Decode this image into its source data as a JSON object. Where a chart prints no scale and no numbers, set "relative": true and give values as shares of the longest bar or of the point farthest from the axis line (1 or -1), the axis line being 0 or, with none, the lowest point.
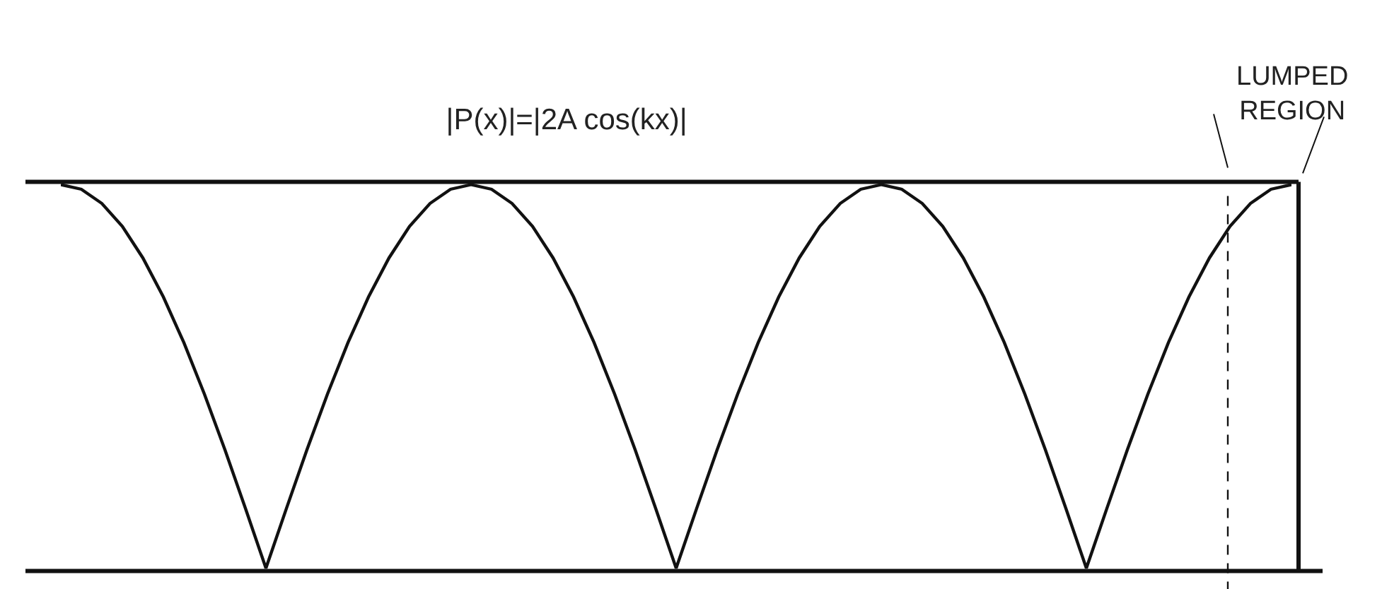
{
  "chart_data": {
    "type": "line",
    "title": "|P(x)|=|2A cos(kx)|",
    "relative": true,
    "line_style": "solid",
    "color": "#111111",
    "categories": [
      null,
      null,
      null,
      null,
      null,
      null,
      null,
      null,
      null,
      null,
      null,
      null,
      null,
      null,
      null,
      null,
      null,
      null,
      null,
      null,
      null,
      null,
      null,
      null,
      null,
      null,
      null,
      null,
      null,
      null,
      null,
      null,
      null,
      null,
      null,
      null,
      null,
      null,
      null,
      null,
      null,
      null,
      null,
      null,
      null,
      null,
      null,
      null,
      null,
      null,
      null,
      null,
      null,
      null,
      null,
      null,
      null,
      null,
      null,
      null,
      null
    ],
    "values": [
      1,
      0.988,
      0.951,
      0.891,
      0.809,
      0.707,
      0.588,
      0.454,
      0.309,
      0.156,
      0,
      0.156,
      0.309,
      0.454,
      0.588,
      0.707,
      0.809,
      0.891,
      0.951,
      0.988,
      1,
      0.988,
      0.951,
      0.891,
      0.809,
      0.707,
      0.588,
      0.454,
      0.309,
      0.156,
      0,
      0.156,
      0.309,
      0.454,
      0.588,
      0.707,
      0.809,
      0.891,
      0.951,
      0.988,
      1,
      0.988,
      0.951,
      0.891,
      0.809,
      0.707,
      0.588,
      0.454,
      0.309,
      0.156,
      0,
      0.156,
      0.309,
      0.454,
      0.588,
      0.707,
      0.809,
      0.891,
      0.951,
      0.988,
      1
    ],
    "annotations": [
      "LUMPED REGION"
    ]
  }
}
